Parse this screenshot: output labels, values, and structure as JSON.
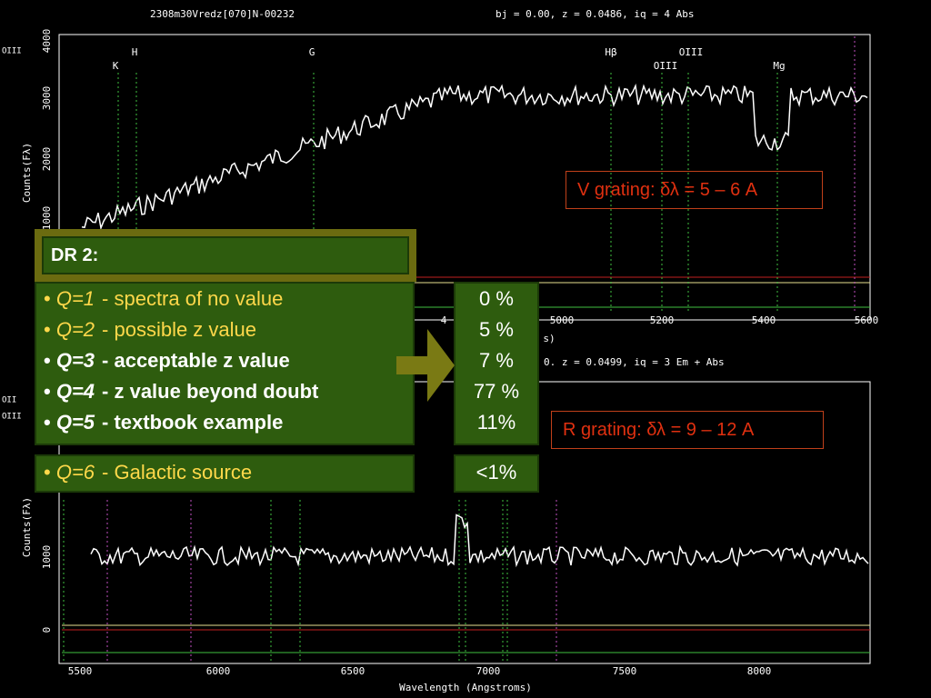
{
  "top_plot": {
    "header_left": "2308m30Vredz[070]N-00232",
    "header_right": "bj =  0.00, z = 0.0486, iq =  4 Abs",
    "side_label": "OIII",
    "y_axis_label": "Counts(Fλ)",
    "yticks": [
      "1000",
      "2000",
      "3000",
      "4000"
    ],
    "line_labels": [
      "K",
      "H",
      "G",
      "Hβ",
      "OIII",
      "OIII",
      "Mg"
    ],
    "xticks": [
      "4",
      "5000",
      "5200",
      "5400",
      "5600"
    ],
    "x_axis_note": "s)"
  },
  "bottom_plot": {
    "header_right": "0. z = 0.0499, iq =  3 Em + Abs",
    "side_labels": [
      "OII",
      "OIII"
    ],
    "y_axis_label": "Counts(Fλ)",
    "yticks": [
      "0",
      "1000"
    ],
    "xticks": [
      "5500",
      "6000",
      "6500",
      "7000",
      "7500",
      "8000"
    ],
    "x_axis_label": "Wavelength (Angstroms)"
  },
  "v_grating": "V grating: δλ = 5 – 6 A",
  "r_grating": "R grating: δλ = 9 – 12 A",
  "dr_title": "DR 2:",
  "quality_classes": [
    {
      "q": "Q=1",
      "description": "- spectra of no value",
      "share": "0 %"
    },
    {
      "q": "Q=2",
      "description": "- possible z value",
      "share": "5 %"
    },
    {
      "q": "Q=3",
      "description": "- acceptable z value",
      "share": "7 %"
    },
    {
      "q": "Q=4",
      "description": "- z value beyond doubt",
      "share": "77 %"
    },
    {
      "q": "Q=5",
      "description": "- textbook example",
      "share": "11%"
    },
    {
      "q": "Q=6",
      "description": "- Galactic source",
      "share": "<1%"
    }
  ]
}
